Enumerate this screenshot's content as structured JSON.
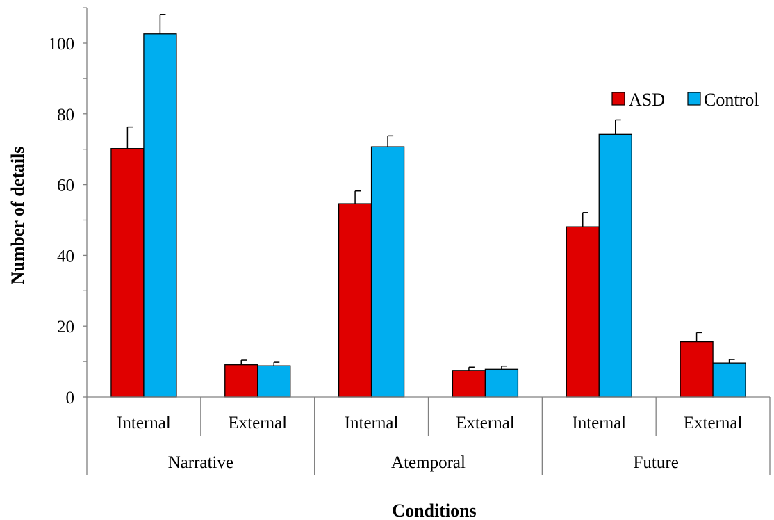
{
  "chart_data": {
    "type": "bar",
    "xlabel": "Conditions",
    "ylabel": "Number of details",
    "ylim": [
      0,
      110
    ],
    "yticks": [
      0,
      20,
      40,
      60,
      80,
      100
    ],
    "grid": false,
    "legend_position": "top-right",
    "groups": [
      "Narrative",
      "Atemporal",
      "Future"
    ],
    "categories": [
      "Internal",
      "External",
      "Internal",
      "External",
      "Internal",
      "External"
    ],
    "series": [
      {
        "name": "ASD",
        "color": "#E00000",
        "values": [
          70.2,
          9.1,
          54.6,
          7.5,
          48.1,
          15.6
        ],
        "errors": [
          6.1,
          1.3,
          3.6,
          0.9,
          4.0,
          2.6
        ]
      },
      {
        "name": "Control",
        "color": "#00AEEF",
        "values": [
          102.6,
          8.8,
          70.7,
          7.8,
          74.2,
          9.6
        ],
        "errors": [
          5.5,
          1.0,
          3.1,
          0.9,
          4.1,
          1.0
        ]
      }
    ]
  }
}
